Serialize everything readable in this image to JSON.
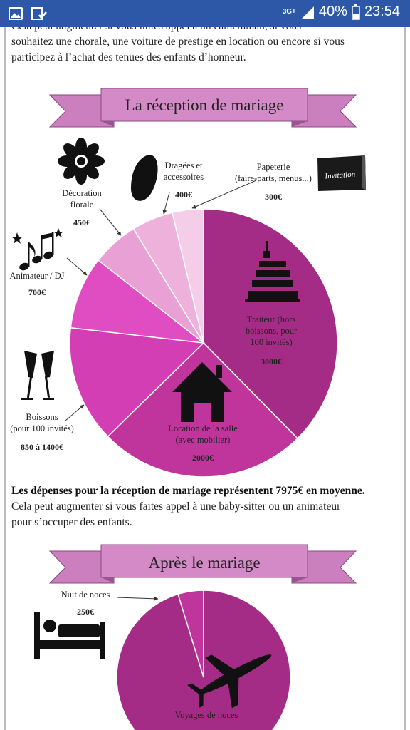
{
  "status_bar": {
    "network": "3G+",
    "battery": "40%",
    "time": "23:54",
    "icons": [
      "image-icon",
      "check-list-icon",
      "signal-icon",
      "battery-icon"
    ]
  },
  "intro_text": {
    "line1": "Cela peut augmenter si vous faites appel à un caméraman, si vous",
    "line2": "souhaitez une chorale, une voiture de prestige en location ou encore si vous",
    "line3": "participez à l’achat des tenues des enfants d’honneur."
  },
  "section_reception": {
    "banner_title": "La réception de mariage",
    "summary_bold": "Les dépenses pour la réception de mariage représentent 7975€ en moyenne.",
    "summary_line2": "Cela peut augmenter si vous faites appel à une baby-sitter ou un animateur",
    "summary_line3": "pour s’occuper des enfants.",
    "icons": [
      "flower-icon",
      "dragee-icon",
      "invitation-card-icon",
      "music-notes-icon",
      "cake-icon",
      "champagne-glasses-icon",
      "house-icon"
    ],
    "invitation_text": "Invitation"
  },
  "section_after": {
    "banner_title": "Après le mariage",
    "icons": [
      "bed-icon",
      "airplane-icon"
    ]
  },
  "colors": {
    "banner_fill": "#cc7fbf",
    "banner_dark": "#b065a6",
    "status_bar": "#2d58a7"
  },
  "chart_data": [
    {
      "type": "pie",
      "title": "La réception de mariage",
      "slices": [
        {
          "label": [
            "Traiteur (hors",
            "boissons, pour",
            "100 invités)"
          ],
          "value_text": "3000€",
          "value": 3000,
          "color": "#a52c86"
        },
        {
          "label": [
            "Location de la salle",
            "(avec mobilier)"
          ],
          "value_text": "2000€",
          "value": 2000,
          "color": "#c0359c"
        },
        {
          "label": [
            "Boissons",
            "(pour 100 invités)"
          ],
          "value_text": "850 à 1400€",
          "value": 1125,
          "color": "#d43eb4"
        },
        {
          "label": [
            "Animateur / DJ"
          ],
          "value_text": "700€",
          "value": 700,
          "color": "#e04cc2"
        },
        {
          "label": [
            "Décoration",
            "florale"
          ],
          "value_text": "450€",
          "value": 450,
          "color": "#e9a0d5"
        },
        {
          "label": [
            "Dragées et",
            "accessoires"
          ],
          "value_text": "400€",
          "value": 400,
          "color": "#eeb1dc"
        },
        {
          "label": [
            "Papeterie",
            "(faire-parts, menus...)"
          ],
          "value_text": "300€",
          "value": 300,
          "color": "#f4cde8"
        }
      ]
    },
    {
      "type": "pie",
      "title": "Après le mariage",
      "slices": [
        {
          "label": [
            "Voyages de noces"
          ],
          "value_text": "",
          "value": 5000,
          "color": "#a52c86"
        },
        {
          "label": [
            "Nuit de noces"
          ],
          "value_text": "250€",
          "value": 250,
          "color": "#c0359c"
        }
      ]
    }
  ]
}
